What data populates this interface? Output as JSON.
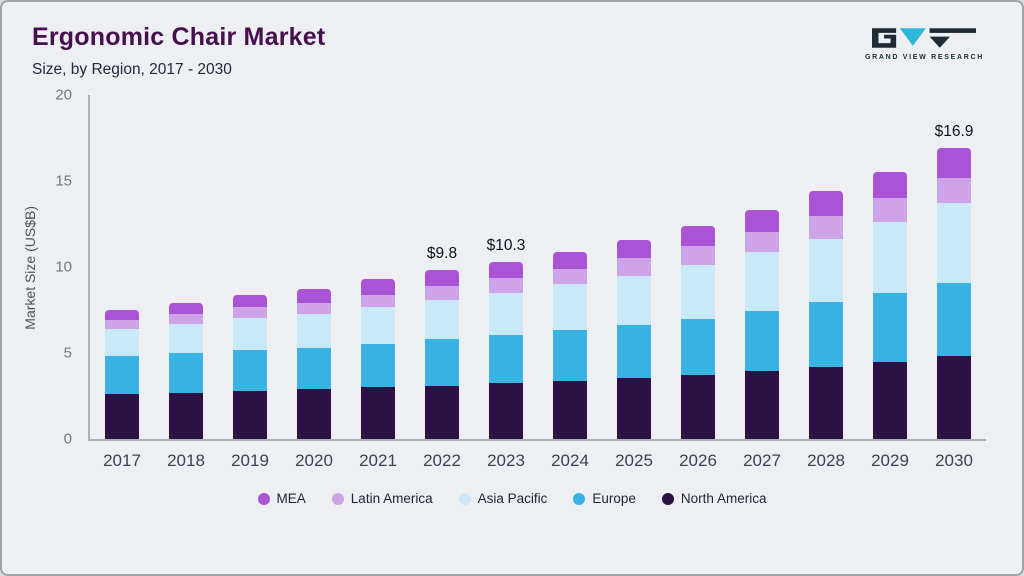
{
  "header": {
    "title": "Ergonomic Chair Market",
    "subtitle": "Size, by Region, 2017 - 2030",
    "logo_text": "GRAND VIEW RESEARCH"
  },
  "colors": {
    "accent_teal": "#2db8d8",
    "logo_dark": "#1e2b34",
    "title_purple": "#45104d"
  },
  "chart_data": {
    "type": "bar",
    "stacked": true,
    "title": "Ergonomic Chair Market Size, by Region, 2017 - 2030",
    "xlabel": "",
    "ylabel": "Market Size (US$B)",
    "ylim": [
      0,
      20
    ],
    "yticks": [
      0,
      5,
      10,
      15,
      20
    ],
    "grid": false,
    "legend_position": "bottom",
    "categories": [
      "2017",
      "2018",
      "2019",
      "2020",
      "2021",
      "2022",
      "2023",
      "2024",
      "2025",
      "2026",
      "2027",
      "2028",
      "2029",
      "2030"
    ],
    "series": [
      {
        "name": "North America",
        "color": "#2d1145",
        "values": [
          2.6,
          2.7,
          2.8,
          2.9,
          3.0,
          3.1,
          3.25,
          3.4,
          3.55,
          3.7,
          3.95,
          4.2,
          4.5,
          4.8
        ]
      },
      {
        "name": "Europe",
        "color": "#38b3e4",
        "values": [
          2.2,
          2.3,
          2.4,
          2.4,
          2.55,
          2.7,
          2.8,
          2.95,
          3.1,
          3.3,
          3.5,
          3.75,
          4.0,
          4.3
        ]
      },
      {
        "name": "Asia Pacific",
        "color": "#c9e9f9",
        "values": [
          1.6,
          1.7,
          1.85,
          1.95,
          2.1,
          2.3,
          2.45,
          2.65,
          2.85,
          3.1,
          3.4,
          3.7,
          4.1,
          4.6
        ]
      },
      {
        "name": "Latin America",
        "color": "#cfa3e8",
        "values": [
          0.5,
          0.55,
          0.6,
          0.65,
          0.75,
          0.8,
          0.85,
          0.9,
          1.0,
          1.1,
          1.2,
          1.3,
          1.4,
          1.5
        ]
      },
      {
        "name": "MEA",
        "color": "#a854d4",
        "values": [
          0.6,
          0.65,
          0.75,
          0.8,
          0.9,
          0.9,
          0.95,
          1.0,
          1.1,
          1.2,
          1.25,
          1.45,
          1.5,
          1.7
        ]
      }
    ],
    "totals": [
      7.5,
      7.9,
      8.4,
      8.7,
      9.3,
      9.8,
      10.3,
      10.9,
      11.6,
      12.4,
      13.3,
      14.4,
      15.5,
      16.9
    ],
    "annotations": [
      {
        "category": "2022",
        "text": "$9.8"
      },
      {
        "category": "2023",
        "text": "$10.3"
      },
      {
        "category": "2030",
        "text": "$16.9"
      }
    ],
    "legend": [
      "MEA",
      "Latin America",
      "Asia Pacific",
      "Europe",
      "North America"
    ]
  }
}
